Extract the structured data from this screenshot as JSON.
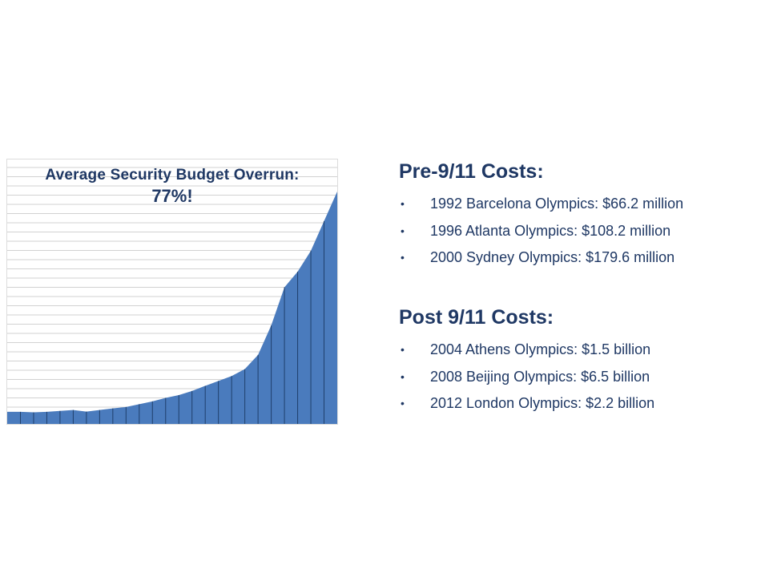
{
  "chart_data": {
    "type": "area",
    "title": "Average Security Budget Overrun:",
    "subtitle": "77%!",
    "xlabel": "",
    "ylabel": "",
    "grid": true,
    "ylim": [
      0,
      100
    ],
    "x": [
      1,
      2,
      3,
      4,
      5,
      6,
      7,
      8,
      9,
      10,
      11,
      12,
      13,
      14,
      15,
      16,
      17,
      18,
      19,
      20,
      21,
      22,
      23,
      24,
      25
    ],
    "values": [
      5.2,
      5.0,
      5.2,
      5.6,
      6.0,
      5.3,
      6.0,
      6.7,
      7.3,
      8.5,
      9.7,
      11.2,
      12.4,
      14.2,
      16.4,
      18.5,
      20.6,
      23.6,
      29.7,
      42.4,
      58.8,
      65.5,
      74.5,
      87.3,
      100
    ]
  },
  "text_panel": {
    "sections": [
      {
        "heading": "Pre-9/11 Costs:",
        "items": [
          "1992 Barcelona Olympics: $66.2 million",
          "1996 Atlanta Olympics: $108.2 million",
          "2000 Sydney Olympics: $179.6 million"
        ]
      },
      {
        "heading": "Post 9/11 Costs:",
        "items": [
          "2004 Athens Olympics: $1.5 billion",
          "2008 Beijing Olympics: $6.5 billion",
          "2012 London Olympics: $2.2 billion"
        ]
      }
    ],
    "bullet": "•"
  },
  "colors": {
    "area_fill": "#4a7bbd",
    "bar_divider": "#1f3f6b",
    "grid_line": "#d2d2d2",
    "text": "#1f3864"
  }
}
